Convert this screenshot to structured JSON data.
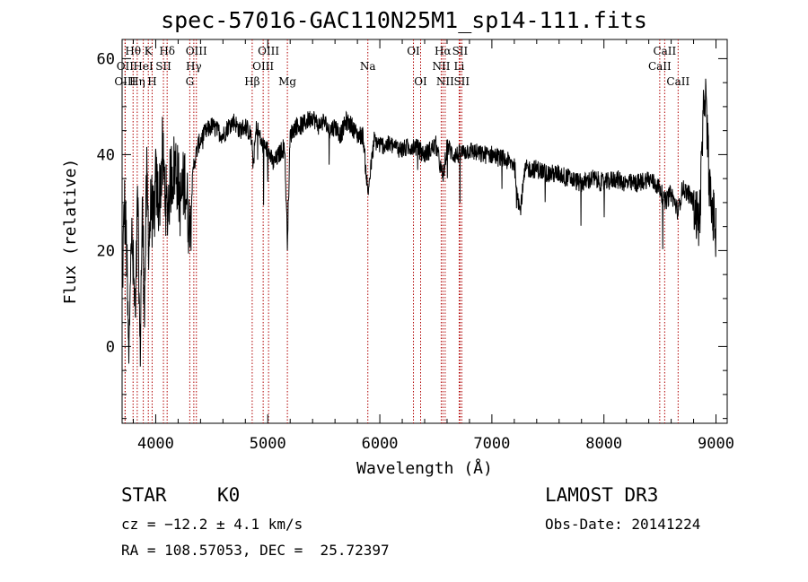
{
  "title": "spec-57016-GAC110N25M1_sp14-111.fits",
  "info": {
    "object_class": "STAR",
    "subclass": "K0",
    "survey": "LAMOST DR3",
    "cz": "cz = −12.2 ± 4.1 km/s",
    "obs_date": "Obs-Date: 20141224",
    "coords": "RA = 108.57053, DEC =  25.72397"
  },
  "chart_data": {
    "type": "line",
    "title": "spec-57016-GAC110N25M1_sp14-111.fits",
    "xlabel": "Wavelength (Å)",
    "ylabel": "Flux (relative)",
    "xlim": [
      3700,
      9100
    ],
    "ylim": [
      -16,
      64
    ],
    "xticks": [
      4000,
      5000,
      6000,
      7000,
      8000,
      9000
    ],
    "yticks": [
      0,
      20,
      40,
      60
    ],
    "series": [
      {
        "name": "flux",
        "color": "#000000",
        "x": [
          3700,
          3720,
          3740,
          3760,
          3780,
          3800,
          3820,
          3840,
          3860,
          3880,
          3900,
          3920,
          3940,
          3960,
          3980,
          4000,
          4030,
          4060,
          4100,
          4140,
          4180,
          4220,
          4260,
          4300,
          4340,
          4380,
          4420,
          4460,
          4500,
          4550,
          4600,
          4650,
          4700,
          4750,
          4800,
          4850,
          4870,
          4900,
          4950,
          5000,
          5050,
          5100,
          5150,
          5175,
          5200,
          5250,
          5300,
          5350,
          5400,
          5450,
          5500,
          5550,
          5600,
          5650,
          5700,
          5750,
          5800,
          5850,
          5893,
          5950,
          6000,
          6100,
          6200,
          6300,
          6400,
          6500,
          6563,
          6600,
          6650,
          6700,
          6800,
          6900,
          7000,
          7100,
          7200,
          7250,
          7300,
          7400,
          7500,
          7600,
          7700,
          7800,
          7900,
          8000,
          8100,
          8200,
          8300,
          8400,
          8500,
          8542,
          8600,
          8662,
          8700,
          8750,
          8800,
          8850,
          8900,
          8950,
          9000
        ],
        "values": [
          10,
          30,
          20,
          -5,
          25,
          15,
          5,
          32,
          -2,
          28,
          10,
          34,
          22,
          30,
          25,
          34,
          30,
          40,
          28,
          36,
          38,
          30,
          35,
          25,
          38,
          42,
          44,
          45,
          46,
          45,
          44,
          46,
          47,
          45,
          46,
          44,
          38,
          46,
          42,
          41,
          38,
          40,
          42,
          22,
          44,
          46,
          46,
          47,
          48,
          46,
          47,
          45,
          46,
          44,
          47,
          46,
          44,
          44,
          32,
          43,
          42,
          42,
          41,
          42,
          40,
          42,
          35,
          42,
          40,
          40,
          41,
          40,
          40,
          39,
          38,
          28,
          37,
          37,
          36,
          36,
          35,
          34,
          35,
          34,
          35,
          34,
          34,
          35,
          33,
          30,
          32,
          28,
          33,
          32,
          30,
          25,
          55,
          30,
          25
        ],
        "noise_amplitude": 2.0
      }
    ],
    "lines": [
      {
        "name": "Hθ",
        "wavelength": 3798,
        "row": 1
      },
      {
        "name": "OII",
        "wavelength": 3727,
        "row": 2
      },
      {
        "name": "OIII",
        "wavelength": 3727,
        "row": 3
      },
      {
        "name": "HeI",
        "wavelength": 3889,
        "row": 2
      },
      {
        "name": "Hη",
        "wavelength": 3835,
        "row": 3
      },
      {
        "name": "K",
        "wavelength": 3934,
        "row": 1
      },
      {
        "name": "SII",
        "wavelength": 4069,
        "row": 2
      },
      {
        "name": "H",
        "wavelength": 3968,
        "row": 3
      },
      {
        "name": "Hδ",
        "wavelength": 4102,
        "row": 1
      },
      {
        "name": "OIII",
        "wavelength": 4363,
        "row": 1
      },
      {
        "name": "Hγ",
        "wavelength": 4340,
        "row": 2
      },
      {
        "name": "G",
        "wavelength": 4304,
        "row": 3
      },
      {
        "name": "OIII",
        "wavelength": 5007,
        "row": 1
      },
      {
        "name": "OIII",
        "wavelength": 4959,
        "row": 2
      },
      {
        "name": "Hβ",
        "wavelength": 4861,
        "row": 3
      },
      {
        "name": "Mg",
        "wavelength": 5175,
        "row": 3
      },
      {
        "name": "Na",
        "wavelength": 5893,
        "row": 2
      },
      {
        "name": "OI",
        "wavelength": 6300,
        "row": 1
      },
      {
        "name": "OI",
        "wavelength": 6364,
        "row": 3
      },
      {
        "name": "Hα",
        "wavelength": 6563,
        "row": 1
      },
      {
        "name": "SII",
        "wavelength": 6716,
        "row": 1
      },
      {
        "name": "NII",
        "wavelength": 6548,
        "row": 2
      },
      {
        "name": "Li",
        "wavelength": 6708,
        "row": 2
      },
      {
        "name": "NII",
        "wavelength": 6583,
        "row": 3
      },
      {
        "name": "SII",
        "wavelength": 6731,
        "row": 3
      },
      {
        "name": "CaII",
        "wavelength": 8542,
        "row": 1
      },
      {
        "name": "CaII",
        "wavelength": 8498,
        "row": 2
      },
      {
        "name": "CaII",
        "wavelength": 8662,
        "row": 3
      }
    ]
  }
}
